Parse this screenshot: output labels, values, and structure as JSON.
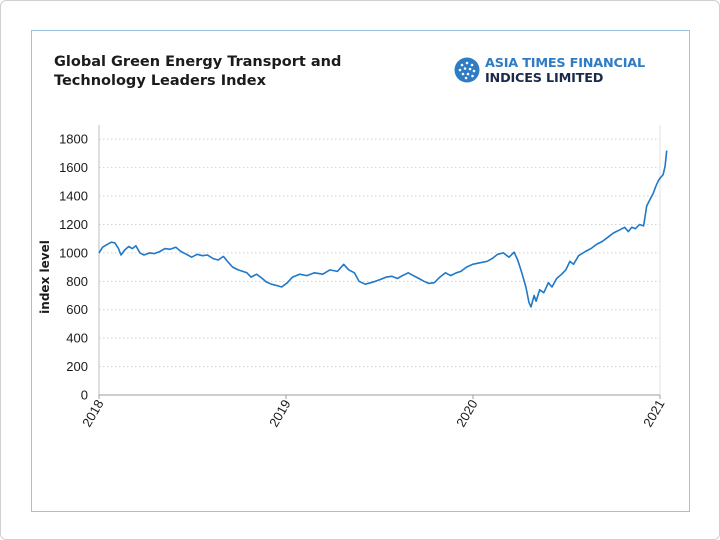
{
  "header": {
    "title_line1": "Global Green Energy Transport and",
    "title_line2": "Technology Leaders Index"
  },
  "logo": {
    "line1": "ASIA TIMES FINANCIAL",
    "line2": "INDICES LIMITED",
    "mark_icon": "globe-dots-icon"
  },
  "colors": {
    "line": "#1f78c8",
    "accent": "#2e7cc4",
    "card_border": "#9cc3e2"
  },
  "chart_data": {
    "type": "line",
    "title": "Global Green Energy Transport and Technology Leaders Index",
    "xlabel": "",
    "ylabel": "index level",
    "ylim": [
      0,
      1900
    ],
    "xlim": [
      "2018-01-01",
      "2021-01-01"
    ],
    "yticks": [
      0,
      200,
      400,
      600,
      800,
      1000,
      1200,
      1400,
      1600,
      1800
    ],
    "xticks": [
      "2018",
      "2019",
      "2020",
      "2021"
    ],
    "grid": "horizontal dotted",
    "series": [
      {
        "values": [
          [
            "2018-01-01",
            1000
          ],
          [
            "2018-01-08",
            1040
          ],
          [
            "2018-01-17",
            1060
          ],
          [
            "2018-01-25",
            1075
          ],
          [
            "2018-02-01",
            1070
          ],
          [
            "2018-02-08",
            1030
          ],
          [
            "2018-02-13",
            985
          ],
          [
            "2018-02-20",
            1020
          ],
          [
            "2018-02-28",
            1045
          ],
          [
            "2018-03-07",
            1030
          ],
          [
            "2018-03-14",
            1050
          ],
          [
            "2018-03-22",
            1000
          ],
          [
            "2018-03-30",
            985
          ],
          [
            "2018-04-10",
            1000
          ],
          [
            "2018-04-19",
            995
          ],
          [
            "2018-04-30",
            1010
          ],
          [
            "2018-05-10",
            1030
          ],
          [
            "2018-05-20",
            1025
          ],
          [
            "2018-05-31",
            1040
          ],
          [
            "2018-06-10",
            1010
          ],
          [
            "2018-06-21",
            990
          ],
          [
            "2018-07-01",
            970
          ],
          [
            "2018-07-12",
            990
          ],
          [
            "2018-07-22",
            980
          ],
          [
            "2018-08-01",
            985
          ],
          [
            "2018-08-12",
            960
          ],
          [
            "2018-08-22",
            950
          ],
          [
            "2018-09-01",
            975
          ],
          [
            "2018-09-09",
            940
          ],
          [
            "2018-09-19",
            900
          ],
          [
            "2018-09-30",
            880
          ],
          [
            "2018-10-09",
            870
          ],
          [
            "2018-10-17",
            860
          ],
          [
            "2018-10-25",
            830
          ],
          [
            "2018-11-05",
            850
          ],
          [
            "2018-11-16",
            820
          ],
          [
            "2018-11-24",
            795
          ],
          [
            "2018-12-04",
            780
          ],
          [
            "2018-12-15",
            770
          ],
          [
            "2018-12-24",
            760
          ],
          [
            "2019-01-04",
            790
          ],
          [
            "2019-01-14",
            830
          ],
          [
            "2019-01-28",
            850
          ],
          [
            "2019-02-11",
            840
          ],
          [
            "2019-02-26",
            860
          ],
          [
            "2019-03-14",
            850
          ],
          [
            "2019-03-28",
            880
          ],
          [
            "2019-04-12",
            870
          ],
          [
            "2019-04-24",
            920
          ],
          [
            "2019-05-04",
            880
          ],
          [
            "2019-05-15",
            860
          ],
          [
            "2019-05-24",
            800
          ],
          [
            "2019-06-05",
            780
          ],
          [
            "2019-06-16",
            790
          ],
          [
            "2019-06-25",
            800
          ],
          [
            "2019-07-06",
            815
          ],
          [
            "2019-07-16",
            830
          ],
          [
            "2019-07-27",
            835
          ],
          [
            "2019-08-07",
            820
          ],
          [
            "2019-08-17",
            840
          ],
          [
            "2019-08-28",
            860
          ],
          [
            "2019-09-07",
            840
          ],
          [
            "2019-09-18",
            820
          ],
          [
            "2019-09-28",
            800
          ],
          [
            "2019-10-07",
            785
          ],
          [
            "2019-10-18",
            790
          ],
          [
            "2019-10-29",
            830
          ],
          [
            "2019-11-09",
            860
          ],
          [
            "2019-11-19",
            840
          ],
          [
            "2019-11-30",
            860
          ],
          [
            "2019-12-09",
            870
          ],
          [
            "2019-12-20",
            900
          ],
          [
            "2020-01-01",
            920
          ],
          [
            "2020-01-15",
            930
          ],
          [
            "2020-01-29",
            940
          ],
          [
            "2020-02-08",
            960
          ],
          [
            "2020-02-19",
            990
          ],
          [
            "2020-03-01",
            1000
          ],
          [
            "2020-03-12",
            970
          ],
          [
            "2020-03-22",
            1005
          ],
          [
            "2020-03-29",
            950
          ],
          [
            "2020-04-06",
            860
          ],
          [
            "2020-04-14",
            760
          ],
          [
            "2020-04-20",
            650
          ],
          [
            "2020-04-24",
            620
          ],
          [
            "2020-04-30",
            700
          ],
          [
            "2020-05-04",
            660
          ],
          [
            "2020-05-11",
            740
          ],
          [
            "2020-05-19",
            720
          ],
          [
            "2020-05-28",
            790
          ],
          [
            "2020-06-04",
            760
          ],
          [
            "2020-06-13",
            820
          ],
          [
            "2020-06-23",
            850
          ],
          [
            "2020-07-01",
            880
          ],
          [
            "2020-07-09",
            940
          ],
          [
            "2020-07-16",
            920
          ],
          [
            "2020-07-26",
            980
          ],
          [
            "2020-08-08",
            1010
          ],
          [
            "2020-08-19",
            1030
          ],
          [
            "2020-08-30",
            1060
          ],
          [
            "2020-09-10",
            1080
          ],
          [
            "2020-09-21",
            1110
          ],
          [
            "2020-10-02",
            1140
          ],
          [
            "2020-10-13",
            1160
          ],
          [
            "2020-10-24",
            1180
          ],
          [
            "2020-10-31",
            1150
          ],
          [
            "2020-11-07",
            1180
          ],
          [
            "2020-11-14",
            1170
          ],
          [
            "2020-11-22",
            1200
          ],
          [
            "2020-11-30",
            1190
          ],
          [
            "2020-12-06",
            1330
          ],
          [
            "2020-12-13",
            1380
          ],
          [
            "2020-12-19",
            1420
          ],
          [
            "2020-12-24",
            1470
          ],
          [
            "2020-12-29",
            1510
          ],
          [
            "2021-01-02",
            1530
          ],
          [
            "2021-01-07",
            1550
          ],
          [
            "2021-01-11",
            1610
          ],
          [
            "2021-01-14",
            1720
          ]
        ]
      }
    ]
  }
}
